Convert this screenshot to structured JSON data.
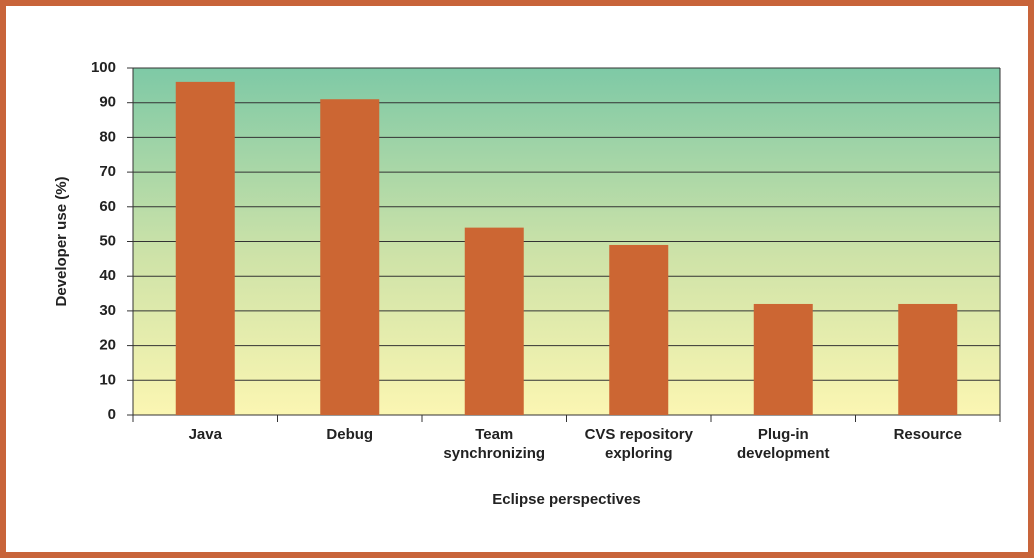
{
  "chart_data": {
    "type": "bar",
    "categories": [
      "Java",
      "Debug",
      "Team\nsynchronizing",
      "CVS repository\nexploring",
      "Plug-in\ndevelopment",
      "Resource"
    ],
    "values": [
      96,
      91,
      54,
      49,
      32,
      32
    ],
    "color": "#cc6633",
    "xlabel": "Eclipse perspectives",
    "ylabel": "Developer use (%)",
    "ylim": [
      0,
      100
    ],
    "yticks": [
      0,
      10,
      20,
      30,
      40,
      50,
      60,
      70,
      80,
      90,
      100
    ],
    "grid": true
  }
}
